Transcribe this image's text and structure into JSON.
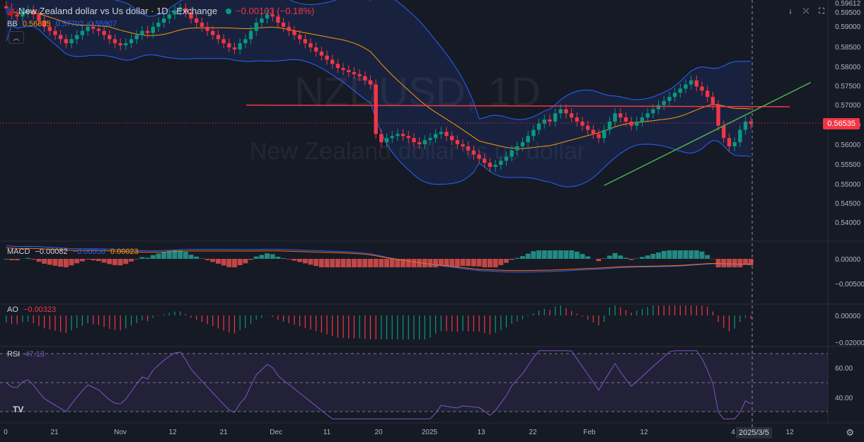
{
  "header": {
    "symbol_title": "New Zealand dollar vs Us dollar · 1D · Exchange",
    "change": "−0.00103 (−0.18%)"
  },
  "watermark": {
    "symbol": "NZDUSD, 1D",
    "name": "New Zealand dollar vs us dollar"
  },
  "bb_legend": {
    "label": "BB",
    "v1": "0.56805",
    "v2": "0.57702",
    "v3": "0.55907"
  },
  "macd_legend": {
    "label": "MACD",
    "v1": "−0.00082",
    "v2": "−0.00058",
    "v3": "0.00023"
  },
  "ao_legend": {
    "label": "AO",
    "v1": "−0.00323"
  },
  "rsi_legend": {
    "label": "RSI",
    "v1": "47.13"
  },
  "last_price": "0.56535",
  "crosshair_date": "2025/3/5",
  "icons": [
    "arrow-down-icon",
    "collapse-icon",
    "fullscreen-icon",
    "settings-icon",
    "tradingview-logo-icon",
    "chevron-up-icon"
  ],
  "colors": {
    "up": "#089981",
    "down": "#f23645",
    "bb_basis": "#ff9800",
    "bb_band": "#2962ff",
    "macd": "#2962ff",
    "signal": "#ff6d00",
    "hline": "#f23645",
    "trend": "#4caf50",
    "rsi": "#7e57c2"
  },
  "chart_data": {
    "type": "candlestick",
    "x_labels": [
      "0",
      "21",
      "Nov",
      "12",
      "21",
      "Dec",
      "11",
      "20",
      "2025",
      "13",
      "22",
      "Feb",
      "12",
      "4",
      "2025/3/5",
      "12"
    ],
    "price_ticks": [
      "0.59612",
      "0.59500",
      "0.59000",
      "0.58500",
      "0.58000",
      "0.57500",
      "0.57000",
      "0.56500",
      "0.56000",
      "0.55500",
      "0.55000",
      "0.54500",
      "0.54000"
    ],
    "price_range": [
      0.5375,
      0.5955
    ],
    "macd_ticks": [
      "0.00000",
      "−0.00500"
    ],
    "ao_ticks": [
      "0.00000",
      "−0.02000"
    ],
    "rsi_ticks": [
      "60.00",
      "40.00"
    ],
    "hline_level": 0.57,
    "trend_line": {
      "from": {
        "index": 110,
        "price": 0.5505
      },
      "to": {
        "index": 148,
        "price": 0.5755
      }
    },
    "closes": [
      0.5935,
      0.592,
      0.5915,
      0.5925,
      0.593,
      0.592,
      0.5905,
      0.589,
      0.588,
      0.587,
      0.586,
      0.585,
      0.586,
      0.587,
      0.588,
      0.589,
      0.5885,
      0.588,
      0.587,
      0.586,
      0.585,
      0.5845,
      0.585,
      0.586,
      0.587,
      0.588,
      0.5875,
      0.589,
      0.59,
      0.591,
      0.592,
      0.593,
      0.5935,
      0.5925,
      0.591,
      0.59,
      0.589,
      0.588,
      0.587,
      0.586,
      0.585,
      0.584,
      0.5835,
      0.585,
      0.586,
      0.588,
      0.59,
      0.591,
      0.592,
      0.5915,
      0.59,
      0.589,
      0.588,
      0.587,
      0.586,
      0.585,
      0.584,
      0.583,
      0.582,
      0.581,
      0.58,
      0.579,
      0.5785,
      0.578,
      0.5775,
      0.577,
      0.576,
      0.575,
      0.563,
      0.561,
      0.562,
      0.5625,
      0.563,
      0.5625,
      0.562,
      0.561,
      0.5605,
      0.5615,
      0.562,
      0.563,
      0.5635,
      0.5625,
      0.5615,
      0.5605,
      0.56,
      0.559,
      0.558,
      0.557,
      0.556,
      0.555,
      0.5555,
      0.5565,
      0.5575,
      0.559,
      0.56,
      0.561,
      0.5625,
      0.564,
      0.5655,
      0.5665,
      0.566,
      0.568,
      0.569,
      0.568,
      0.567,
      0.566,
      0.565,
      0.564,
      0.563,
      0.562,
      0.564,
      0.566,
      0.568,
      0.567,
      0.566,
      0.565,
      0.566,
      0.567,
      0.568,
      0.569,
      0.57,
      0.571,
      0.572,
      0.573,
      0.574,
      0.575,
      0.576,
      0.5745,
      0.5735,
      0.572,
      0.57,
      0.565,
      0.562,
      0.56,
      0.561,
      0.564,
      0.566,
      0.5654
    ]
  }
}
